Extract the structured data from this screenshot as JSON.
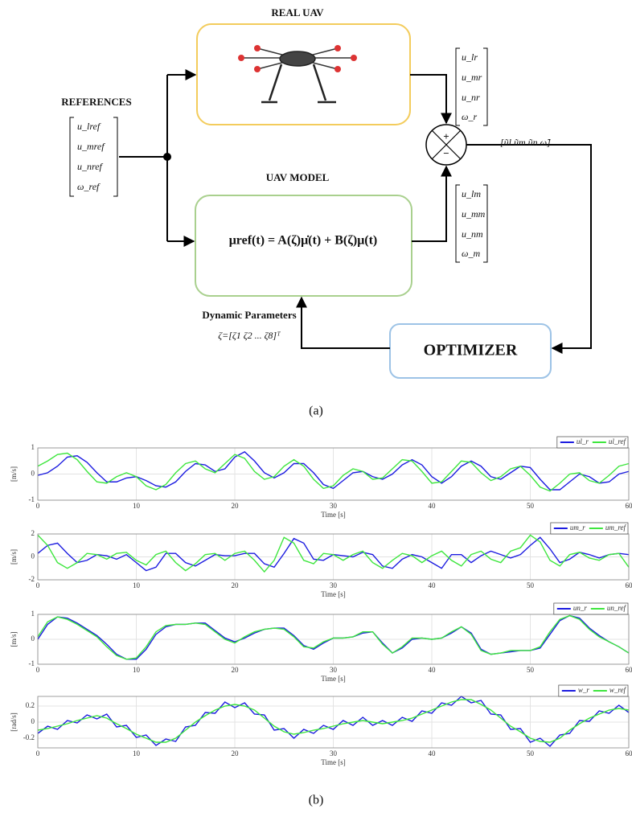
{
  "diagram": {
    "real_uav_title": "REAL UAV",
    "references_title": "REFERENCES",
    "references_vector": [
      "u_lref",
      "u_mref",
      "u_nref",
      "ω_ref"
    ],
    "model_title": "UAV MODEL",
    "model_equation": "μref(t) = A(ζ)μ̇(t) + B(ζ)μ(t)",
    "real_output_vector": [
      "u_lr",
      "u_mr",
      "u_nr",
      "ω_r"
    ],
    "model_output_vector": [
      "u_lm",
      "u_mm",
      "u_nm",
      "ω_m"
    ],
    "sum_plus": "+",
    "sum_minus": "−",
    "error_vector": "[ũl   ũm   ũn   ω̃]",
    "parameters_title": "Dynamic Parameters",
    "parameters_vector": "ζ=[ζ1   ζ2   ...   ζ8]ᵀ",
    "optimizer": "OPTIMIZER",
    "caption": "(a)"
  },
  "caption_b": "(b)",
  "chart_data": [
    {
      "type": "line",
      "xlabel": "Time [s]",
      "ylabel": "[m/s]",
      "grid": true,
      "legend": "upper right",
      "xlim": [
        0,
        60
      ],
      "xticks": [
        0,
        10,
        20,
        30,
        40,
        50,
        60
      ],
      "ylim": [
        -1,
        1
      ],
      "yticks": [
        -1,
        0,
        1
      ],
      "x": [
        0,
        1,
        2,
        3,
        4,
        5,
        6,
        7,
        8,
        9,
        10,
        11,
        12,
        13,
        14,
        15,
        16,
        17,
        18,
        19,
        20,
        21,
        22,
        23,
        24,
        25,
        26,
        27,
        28,
        29,
        30,
        31,
        32,
        33,
        34,
        35,
        36,
        37,
        38,
        39,
        40,
        41,
        42,
        43,
        44,
        45,
        46,
        47,
        48,
        49,
        50,
        51,
        52,
        53,
        54,
        55,
        56,
        57,
        58,
        59,
        60
      ],
      "series": [
        {
          "name": "ul_r",
          "color": "#1c1ce0",
          "values": [
            -0.05,
            0.05,
            0.3,
            0.65,
            0.7,
            0.45,
            0.05,
            -0.3,
            -0.3,
            -0.15,
            -0.1,
            -0.25,
            -0.45,
            -0.5,
            -0.3,
            0.1,
            0.4,
            0.35,
            0.1,
            0.2,
            0.65,
            0.85,
            0.5,
            0.05,
            -0.15,
            0.05,
            0.4,
            0.4,
            0.05,
            -0.4,
            -0.55,
            -0.25,
            0.05,
            0.1,
            -0.1,
            -0.2,
            0,
            0.35,
            0.55,
            0.35,
            -0.1,
            -0.35,
            -0.1,
            0.3,
            0.5,
            0.3,
            -0.1,
            -0.2,
            0.05,
            0.3,
            0.25,
            -0.2,
            -0.6,
            -0.6,
            -0.3,
            0,
            -0.1,
            -0.35,
            -0.3,
            0,
            0.1
          ]
        },
        {
          "name": "ul_ref",
          "color": "#3ee63e",
          "values": [
            0.3,
            0.5,
            0.75,
            0.8,
            0.55,
            0.1,
            -0.3,
            -0.35,
            -0.1,
            0.05,
            -0.1,
            -0.45,
            -0.6,
            -0.4,
            0.05,
            0.4,
            0.5,
            0.2,
            0.05,
            0.4,
            0.75,
            0.6,
            0.1,
            -0.2,
            -0.1,
            0.3,
            0.55,
            0.3,
            -0.2,
            -0.55,
            -0.45,
            -0.05,
            0.2,
            0.1,
            -0.2,
            -0.15,
            0.2,
            0.55,
            0.5,
            0.1,
            -0.35,
            -0.3,
            0.1,
            0.5,
            0.45,
            0.05,
            -0.25,
            -0.1,
            0.2,
            0.3,
            -0.05,
            -0.5,
            -0.65,
            -0.35,
            0,
            0.05,
            -0.25,
            -0.35,
            -0.05,
            0.3,
            0.4
          ]
        }
      ]
    },
    {
      "type": "line",
      "xlabel": "Time [s]",
      "ylabel": "[m/s]",
      "grid": true,
      "legend": "upper right",
      "xlim": [
        0,
        60
      ],
      "xticks": [
        0,
        10,
        20,
        30,
        40,
        50,
        60
      ],
      "ylim": [
        -2,
        2
      ],
      "yticks": [
        -2,
        0,
        2
      ],
      "x": [
        0,
        1,
        2,
        3,
        4,
        5,
        6,
        7,
        8,
        9,
        10,
        11,
        12,
        13,
        14,
        15,
        16,
        17,
        18,
        19,
        20,
        21,
        22,
        23,
        24,
        25,
        26,
        27,
        28,
        29,
        30,
        31,
        32,
        33,
        34,
        35,
        36,
        37,
        38,
        39,
        40,
        41,
        42,
        43,
        44,
        45,
        46,
        47,
        48,
        49,
        50,
        51,
        52,
        53,
        54,
        55,
        56,
        57,
        58,
        59,
        60
      ],
      "series": [
        {
          "name": "um_r",
          "color": "#1c1ce0",
          "values": [
            0.3,
            1.0,
            1.2,
            0.3,
            -0.5,
            -0.3,
            0.2,
            0.1,
            -0.2,
            0.2,
            -0.5,
            -1.2,
            -0.9,
            0.3,
            0.3,
            -0.5,
            -0.8,
            -0.3,
            0.2,
            0.1,
            0.1,
            0.3,
            0.3,
            -0.6,
            -0.9,
            0.3,
            1.6,
            1.2,
            -0.2,
            -0.3,
            0.2,
            0.1,
            0,
            0.4,
            0.2,
            -0.8,
            -1.0,
            -0.2,
            0.2,
            0,
            -0.5,
            -1.0,
            0.2,
            0.2,
            -0.5,
            0.1,
            0.5,
            0.2,
            -0.1,
            0.2,
            1.0,
            1.7,
            0.7,
            -0.5,
            -0.2,
            0.4,
            0.2,
            -0.1,
            0.2,
            0.3,
            0.2
          ]
        },
        {
          "name": "um_ref",
          "color": "#3ee63e",
          "values": [
            1.9,
            1.0,
            -0.5,
            -1.0,
            -0.5,
            0.3,
            0.2,
            -0.2,
            0.3,
            0.4,
            -0.3,
            -0.7,
            0.2,
            0.5,
            -0.5,
            -1.2,
            -0.6,
            0.2,
            0.3,
            -0.3,
            0.3,
            0.5,
            -0.3,
            -1.3,
            -0.3,
            1.7,
            1.2,
            -0.3,
            -0.6,
            0.3,
            0.2,
            -0.3,
            0.2,
            0.5,
            -0.5,
            -1.0,
            -0.3,
            0.3,
            0.1,
            -0.5,
            0.1,
            0.5,
            -0.3,
            -0.8,
            0.2,
            0.5,
            -0.2,
            -0.5,
            0.5,
            0.8,
            1.9,
            1.3,
            -0.3,
            -0.8,
            0.2,
            0.4,
            -0.1,
            -0.3,
            0.2,
            0.3,
            -0.9
          ]
        }
      ]
    },
    {
      "type": "line",
      "xlabel": "Time [s]",
      "ylabel": "[m/s]",
      "grid": true,
      "legend": "upper right",
      "xlim": [
        0,
        60
      ],
      "xticks": [
        0,
        10,
        20,
        30,
        40,
        50,
        60
      ],
      "ylim": [
        -1,
        1
      ],
      "yticks": [
        -1,
        0,
        1
      ],
      "x": [
        0,
        1,
        2,
        3,
        4,
        5,
        6,
        7,
        8,
        9,
        10,
        11,
        12,
        13,
        14,
        15,
        16,
        17,
        18,
        19,
        20,
        21,
        22,
        23,
        24,
        25,
        26,
        27,
        28,
        29,
        30,
        31,
        32,
        33,
        34,
        35,
        36,
        37,
        38,
        39,
        40,
        41,
        42,
        43,
        44,
        45,
        46,
        47,
        48,
        49,
        50,
        51,
        52,
        53,
        54,
        55,
        56,
        57,
        58,
        59,
        60
      ],
      "series": [
        {
          "name": "un_r",
          "color": "#1c1ce0",
          "values": [
            0,
            0.6,
            0.9,
            0.85,
            0.65,
            0.4,
            0.15,
            -0.2,
            -0.6,
            -0.8,
            -0.8,
            -0.4,
            0.2,
            0.5,
            0.6,
            0.6,
            0.65,
            0.65,
            0.35,
            0.05,
            -0.1,
            0.05,
            0.25,
            0.4,
            0.45,
            0.45,
            0.15,
            -0.25,
            -0.4,
            -0.15,
            0.05,
            0.05,
            0.1,
            0.25,
            0.3,
            -0.15,
            -0.55,
            -0.35,
            0,
            0.05,
            0,
            0.05,
            0.25,
            0.5,
            0.25,
            -0.4,
            -0.6,
            -0.55,
            -0.5,
            -0.45,
            -0.45,
            -0.35,
            0.2,
            0.75,
            0.95,
            0.85,
            0.45,
            0.15,
            -0.1,
            -0.3,
            -0.55
          ]
        },
        {
          "name": "un_ref",
          "color": "#3ee63e",
          "values": [
            0.1,
            0.7,
            0.9,
            0.8,
            0.6,
            0.35,
            0.1,
            -0.3,
            -0.65,
            -0.8,
            -0.75,
            -0.3,
            0.3,
            0.55,
            0.6,
            0.6,
            0.65,
            0.6,
            0.3,
            0,
            -0.15,
            0.1,
            0.3,
            0.4,
            0.45,
            0.4,
            0.1,
            -0.3,
            -0.35,
            -0.1,
            0.05,
            0.05,
            0.1,
            0.3,
            0.3,
            -0.2,
            -0.55,
            -0.3,
            0.05,
            0.05,
            0,
            0.05,
            0.3,
            0.5,
            0.2,
            -0.45,
            -0.6,
            -0.55,
            -0.45,
            -0.45,
            -0.45,
            -0.3,
            0.3,
            0.8,
            0.95,
            0.8,
            0.4,
            0.1,
            -0.1,
            -0.3,
            -0.55
          ]
        }
      ]
    },
    {
      "type": "line",
      "xlabel": "Time [s]",
      "ylabel": "[rad/s]",
      "grid": true,
      "legend": "upper right",
      "xlim": [
        0,
        60
      ],
      "xticks": [
        0,
        10,
        20,
        30,
        40,
        50,
        60
      ],
      "ylim": [
        -0.32,
        0.32
      ],
      "yticks": [
        -0.2,
        0,
        0.2
      ],
      "x": [
        0,
        1,
        2,
        3,
        4,
        5,
        6,
        7,
        8,
        9,
        10,
        11,
        12,
        13,
        14,
        15,
        16,
        17,
        18,
        19,
        20,
        21,
        22,
        23,
        24,
        25,
        26,
        27,
        28,
        29,
        30,
        31,
        32,
        33,
        34,
        35,
        36,
        37,
        38,
        39,
        40,
        41,
        42,
        43,
        44,
        45,
        46,
        47,
        48,
        49,
        50,
        51,
        52,
        53,
        54,
        55,
        56,
        57,
        58,
        59,
        60
      ],
      "series": [
        {
          "name": "w_r",
          "color": "#1c1ce0",
          "values": [
            -0.14,
            -0.05,
            -0.09,
            0.02,
            -0.01,
            0.09,
            0.04,
            0.1,
            -0.06,
            -0.04,
            -0.19,
            -0.16,
            -0.29,
            -0.21,
            -0.24,
            -0.06,
            -0.04,
            0.12,
            0.11,
            0.25,
            0.18,
            0.24,
            0.1,
            0.09,
            -0.1,
            -0.08,
            -0.2,
            -0.09,
            -0.14,
            -0.04,
            -0.09,
            0.02,
            -0.04,
            0.06,
            -0.04,
            0.02,
            -0.04,
            0.06,
            0.01,
            0.14,
            0.11,
            0.24,
            0.21,
            0.32,
            0.24,
            0.27,
            0.1,
            0.09,
            -0.09,
            -0.08,
            -0.25,
            -0.2,
            -0.3,
            -0.16,
            -0.14,
            0.02,
            0.01,
            0.14,
            0.11,
            0.21,
            0.12
          ]
        },
        {
          "name": "w_ref",
          "color": "#3ee63e",
          "values": [
            -0.1,
            -0.08,
            -0.05,
            -0.02,
            0.02,
            0.05,
            0.08,
            0.05,
            -0.02,
            -0.08,
            -0.15,
            -0.2,
            -0.25,
            -0.25,
            -0.2,
            -0.1,
            0,
            0.08,
            0.15,
            0.2,
            0.22,
            0.2,
            0.15,
            0.05,
            -0.05,
            -0.12,
            -0.15,
            -0.13,
            -0.1,
            -0.08,
            -0.05,
            -0.02,
            0,
            0.02,
            0,
            -0.02,
            0,
            0.02,
            0.05,
            0.1,
            0.15,
            0.2,
            0.25,
            0.28,
            0.28,
            0.22,
            0.15,
            0.05,
            -0.05,
            -0.12,
            -0.2,
            -0.24,
            -0.25,
            -0.2,
            -0.1,
            -0.02,
            0.05,
            0.1,
            0.15,
            0.17,
            0.15
          ]
        }
      ]
    }
  ]
}
